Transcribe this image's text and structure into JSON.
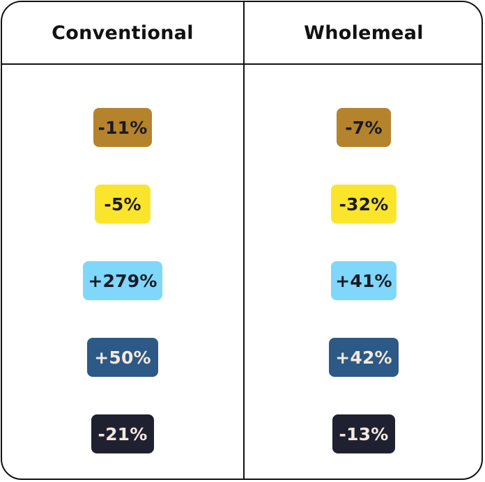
{
  "columns": [
    {
      "header": "Conventional",
      "cells": [
        {
          "label": "-11%",
          "color": "#B5832B"
        },
        {
          "label": "-5%",
          "color": "#FBE52A"
        },
        {
          "label": "+279%",
          "color": "#7FD7FB"
        },
        {
          "label": "+50%",
          "color": "#2C5985"
        },
        {
          "label": "-21%",
          "color": "#1F2130"
        }
      ]
    },
    {
      "header": "Wholemeal",
      "cells": [
        {
          "label": "-7%",
          "color": "#B5832B"
        },
        {
          "label": "-32%",
          "color": "#FBE52A"
        },
        {
          "label": "+41%",
          "color": "#7FD7FB"
        },
        {
          "label": "+42%",
          "color": "#2C5985"
        },
        {
          "label": "-13%",
          "color": "#1F2130"
        }
      ]
    }
  ]
}
